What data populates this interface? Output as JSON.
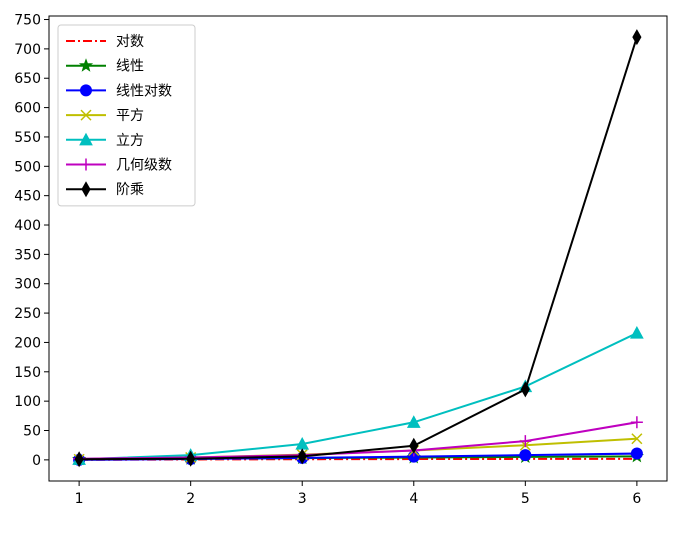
{
  "chart_data": {
    "type": "line",
    "title": "",
    "xlabel": "",
    "ylabel": "",
    "x": [
      1,
      2,
      3,
      4,
      5,
      6
    ],
    "xlim": [
      0.73,
      6.27
    ],
    "ylim": [
      -36,
      756
    ],
    "x_ticks": [
      1,
      2,
      3,
      4,
      5,
      6
    ],
    "y_ticks": [
      0,
      50,
      100,
      150,
      200,
      250,
      300,
      350,
      400,
      450,
      500,
      550,
      600,
      650,
      700,
      750
    ],
    "grid": false,
    "legend_position": "top-left",
    "series": [
      {
        "name": "对数",
        "values": [
          0,
          0.69,
          1.1,
          1.39,
          1.61,
          1.79
        ],
        "color": "#ff0000",
        "line_style": "dashdot",
        "marker": "none"
      },
      {
        "name": "线性",
        "values": [
          1,
          2,
          3,
          4,
          5,
          6
        ],
        "color": "#008000",
        "line_style": "solid",
        "marker": "star"
      },
      {
        "name": "线性对数",
        "values": [
          0,
          1.39,
          3.3,
          5.55,
          8.05,
          10.75
        ],
        "color": "#0000ff",
        "line_style": "solid",
        "marker": "circle"
      },
      {
        "name": "平方",
        "values": [
          1,
          4,
          9,
          16,
          25,
          36
        ],
        "color": "#bfbf00",
        "line_style": "solid",
        "marker": "x"
      },
      {
        "name": "立方",
        "values": [
          1,
          8,
          27,
          64,
          125,
          216
        ],
        "color": "#00bfbf",
        "line_style": "solid",
        "marker": "triangle"
      },
      {
        "name": "几何级数",
        "values": [
          2,
          4,
          8,
          16,
          32,
          64
        ],
        "color": "#bf00bf",
        "line_style": "solid",
        "marker": "plus"
      },
      {
        "name": "阶乘",
        "values": [
          1,
          2,
          6,
          24,
          120,
          720
        ],
        "color": "#000000",
        "line_style": "solid",
        "marker": "thin-diamond"
      }
    ]
  }
}
